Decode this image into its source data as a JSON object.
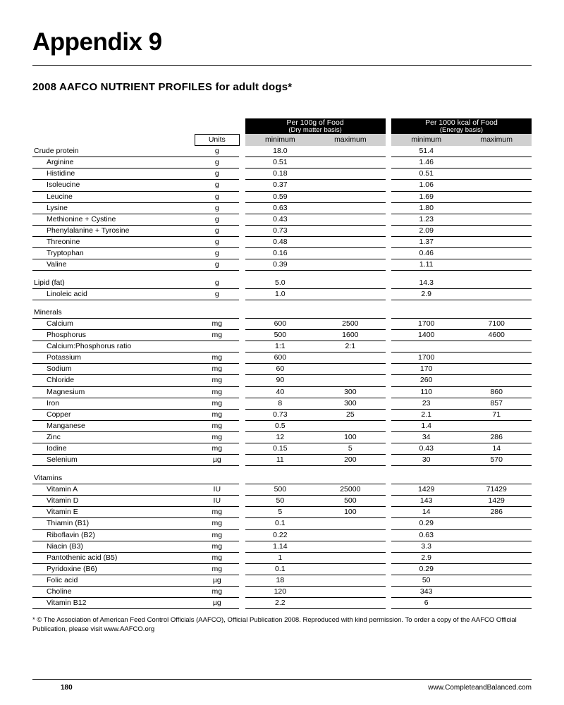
{
  "page": {
    "title": "Appendix 9",
    "subtitle": "2008 AAFCO NUTRIENT PROFILES for adult dogs*",
    "footnote": "* © The Association of American Feed Control Officials (AAFCO), Official Publication 2008. Reproduced with kind permission. To order a copy of the AAFCO Official Publication, please visit www.AAFCO.org",
    "page_number": "180",
    "site": "www.CompleteandBalanced.com"
  },
  "table": {
    "header": {
      "units_label": "Units",
      "group1_top": "Per 100g of Food",
      "group1_bot": "(Dry matter basis)",
      "group2_top": "Per 1000 kcal of Food",
      "group2_bot": "(Energy basis)",
      "min_label": "minimum",
      "max_label": "maximum"
    },
    "rows": [
      {
        "name": "Crude protein",
        "indent": 0,
        "unit": "g",
        "min1": "18.0",
        "max1": "",
        "min2": "51.4",
        "max2": ""
      },
      {
        "name": "Arginine",
        "indent": 1,
        "unit": "g",
        "min1": "0.51",
        "max1": "",
        "min2": "1.46",
        "max2": ""
      },
      {
        "name": "Histidine",
        "indent": 1,
        "unit": "g",
        "min1": "0.18",
        "max1": "",
        "min2": "0.51",
        "max2": ""
      },
      {
        "name": "Isoleucine",
        "indent": 1,
        "unit": "g",
        "min1": "0.37",
        "max1": "",
        "min2": "1.06",
        "max2": ""
      },
      {
        "name": "Leucine",
        "indent": 1,
        "unit": "g",
        "min1": "0.59",
        "max1": "",
        "min2": "1.69",
        "max2": ""
      },
      {
        "name": "Lysine",
        "indent": 1,
        "unit": "g",
        "min1": "0.63",
        "max1": "",
        "min2": "1.80",
        "max2": ""
      },
      {
        "name": "Methionine + Cystine",
        "indent": 1,
        "unit": "g",
        "min1": "0.43",
        "max1": "",
        "min2": "1.23",
        "max2": ""
      },
      {
        "name": "Phenylalanine + Tyrosine",
        "indent": 1,
        "unit": "g",
        "min1": "0.73",
        "max1": "",
        "min2": "2.09",
        "max2": ""
      },
      {
        "name": "Threonine",
        "indent": 1,
        "unit": "g",
        "min1": "0.48",
        "max1": "",
        "min2": "1.37",
        "max2": ""
      },
      {
        "name": "Tryptophan",
        "indent": 1,
        "unit": "g",
        "min1": "0.16",
        "max1": "",
        "min2": "0.46",
        "max2": ""
      },
      {
        "name": "Valine",
        "indent": 1,
        "unit": "g",
        "min1": "0.39",
        "max1": "",
        "min2": "1.11",
        "max2": ""
      },
      {
        "spacer": true
      },
      {
        "name": "Lipid (fat)",
        "indent": 0,
        "unit": "g",
        "min1": "5.0",
        "max1": "",
        "min2": "14.3",
        "max2": ""
      },
      {
        "name": "Linoleic acid",
        "indent": 1,
        "unit": "g",
        "min1": "1.0",
        "max1": "",
        "min2": "2.9",
        "max2": ""
      },
      {
        "spacer": true
      },
      {
        "name": "Minerals",
        "indent": 0,
        "unit": "",
        "min1": "",
        "max1": "",
        "min2": "",
        "max2": ""
      },
      {
        "name": "Calcium",
        "indent": 1,
        "unit": "mg",
        "min1": "600",
        "max1": "2500",
        "min2": "1700",
        "max2": "7100"
      },
      {
        "name": "Phosphorus",
        "indent": 1,
        "unit": "mg",
        "min1": "500",
        "max1": "1600",
        "min2": "1400",
        "max2": "4600"
      },
      {
        "name": "Calcium:Phosphorus ratio",
        "indent": 1,
        "unit": "",
        "min1": "1:1",
        "max1": "2:1",
        "min2": "",
        "max2": ""
      },
      {
        "name": "Potassium",
        "indent": 1,
        "unit": "mg",
        "min1": "600",
        "max1": "",
        "min2": "1700",
        "max2": ""
      },
      {
        "name": "Sodium",
        "indent": 1,
        "unit": "mg",
        "min1": "60",
        "max1": "",
        "min2": "170",
        "max2": ""
      },
      {
        "name": "Chloride",
        "indent": 1,
        "unit": "mg",
        "min1": "90",
        "max1": "",
        "min2": "260",
        "max2": ""
      },
      {
        "name": "Magnesium",
        "indent": 1,
        "unit": "mg",
        "min1": "40",
        "max1": "300",
        "min2": "110",
        "max2": "860"
      },
      {
        "name": "Iron",
        "indent": 1,
        "unit": "mg",
        "min1": "8",
        "max1": "300",
        "min2": "23",
        "max2": "857"
      },
      {
        "name": "Copper",
        "indent": 1,
        "unit": "mg",
        "min1": "0.73",
        "max1": "25",
        "min2": "2.1",
        "max2": "71"
      },
      {
        "name": "Manganese",
        "indent": 1,
        "unit": "mg",
        "min1": "0.5",
        "max1": "",
        "min2": "1.4",
        "max2": ""
      },
      {
        "name": "Zinc",
        "indent": 1,
        "unit": "mg",
        "min1": "12",
        "max1": "100",
        "min2": "34",
        "max2": "286"
      },
      {
        "name": "Iodine",
        "indent": 1,
        "unit": "mg",
        "min1": "0.15",
        "max1": "5",
        "min2": "0.43",
        "max2": "14"
      },
      {
        "name": "Selenium",
        "indent": 1,
        "unit": "µg",
        "min1": "11",
        "max1": "200",
        "min2": "30",
        "max2": "570"
      },
      {
        "spacer": true
      },
      {
        "name": "Vitamins",
        "indent": 0,
        "unit": "",
        "min1": "",
        "max1": "",
        "min2": "",
        "max2": ""
      },
      {
        "name": "Vitamin A",
        "indent": 1,
        "unit": "IU",
        "min1": "500",
        "max1": "25000",
        "min2": "1429",
        "max2": "71429"
      },
      {
        "name": "Vitamin D",
        "indent": 1,
        "unit": "IU",
        "min1": "50",
        "max1": "500",
        "min2": "143",
        "max2": "1429"
      },
      {
        "name": "Vitamin E",
        "indent": 1,
        "unit": "mg",
        "min1": "5",
        "max1": "100",
        "min2": "14",
        "max2": "286"
      },
      {
        "name": "Thiamin (B1)",
        "indent": 1,
        "unit": "mg",
        "min1": "0.1",
        "max1": "",
        "min2": "0.29",
        "max2": ""
      },
      {
        "name": "Riboflavin (B2)",
        "indent": 1,
        "unit": "mg",
        "min1": "0.22",
        "max1": "",
        "min2": "0.63",
        "max2": ""
      },
      {
        "name": "Niacin (B3)",
        "indent": 1,
        "unit": "mg",
        "min1": "1.14",
        "max1": "",
        "min2": "3.3",
        "max2": ""
      },
      {
        "name": "Pantothenic acid (B5)",
        "indent": 1,
        "unit": "mg",
        "min1": "1",
        "max1": "",
        "min2": "2.9",
        "max2": ""
      },
      {
        "name": "Pyridoxine (B6)",
        "indent": 1,
        "unit": "mg",
        "min1": "0.1",
        "max1": "",
        "min2": "0.29",
        "max2": ""
      },
      {
        "name": "Folic acid",
        "indent": 1,
        "unit": "µg",
        "min1": "18",
        "max1": "",
        "min2": "50",
        "max2": ""
      },
      {
        "name": "Choline",
        "indent": 1,
        "unit": "mg",
        "min1": "120",
        "max1": "",
        "min2": "343",
        "max2": ""
      },
      {
        "name": "Vitamin B12",
        "indent": 1,
        "unit": "µg",
        "min1": "2.2",
        "max1": "",
        "min2": "6",
        "max2": ""
      }
    ]
  }
}
